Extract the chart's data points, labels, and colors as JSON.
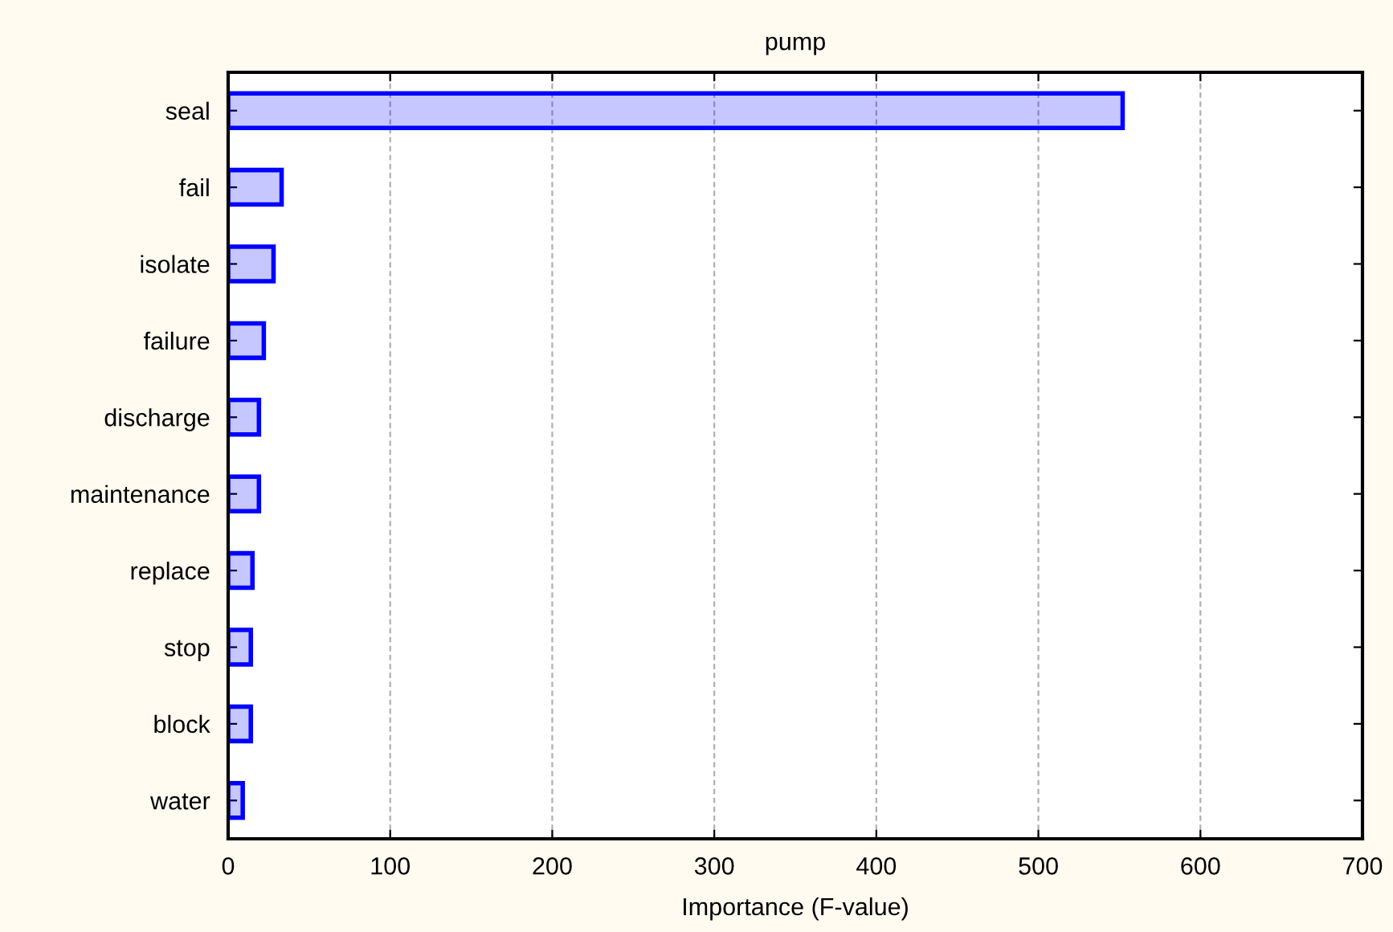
{
  "chart_data": {
    "type": "bar",
    "orientation": "horizontal",
    "title": "pump",
    "xlabel": "Importance (F-value)",
    "categories": [
      "seal",
      "fail",
      "isolate",
      "failure",
      "discharge",
      "maintenance",
      "replace",
      "stop",
      "block",
      "water"
    ],
    "values": [
      552,
      33,
      28,
      22,
      19,
      19,
      15,
      14,
      14,
      9
    ],
    "color": "#0000ff",
    "xlim": [
      0,
      700
    ],
    "xticks": [
      0,
      100,
      200,
      300,
      400,
      500,
      600,
      700
    ],
    "grid": "x"
  }
}
